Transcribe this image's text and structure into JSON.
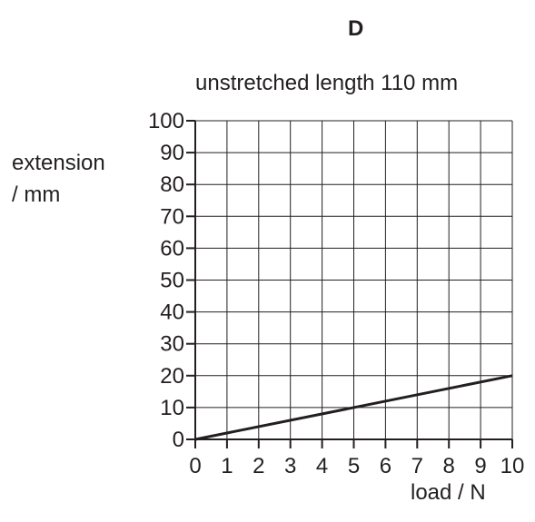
{
  "chart_data": {
    "type": "line",
    "title": "D",
    "subtitle": "unstretched length 110 mm",
    "ylabel_lines": [
      "extension",
      "/ mm"
    ],
    "xlabel": "load / N",
    "xlim": [
      0,
      10
    ],
    "ylim": [
      0,
      100
    ],
    "x_ticks": [
      0,
      1,
      2,
      3,
      4,
      5,
      6,
      7,
      8,
      9,
      10
    ],
    "y_ticks": [
      0,
      10,
      20,
      30,
      40,
      50,
      60,
      70,
      80,
      90,
      100
    ],
    "grid": true,
    "series": [
      {
        "x": [
          0,
          10
        ],
        "y": [
          0,
          20
        ]
      }
    ],
    "colors": {
      "ink": "#231f20"
    }
  }
}
